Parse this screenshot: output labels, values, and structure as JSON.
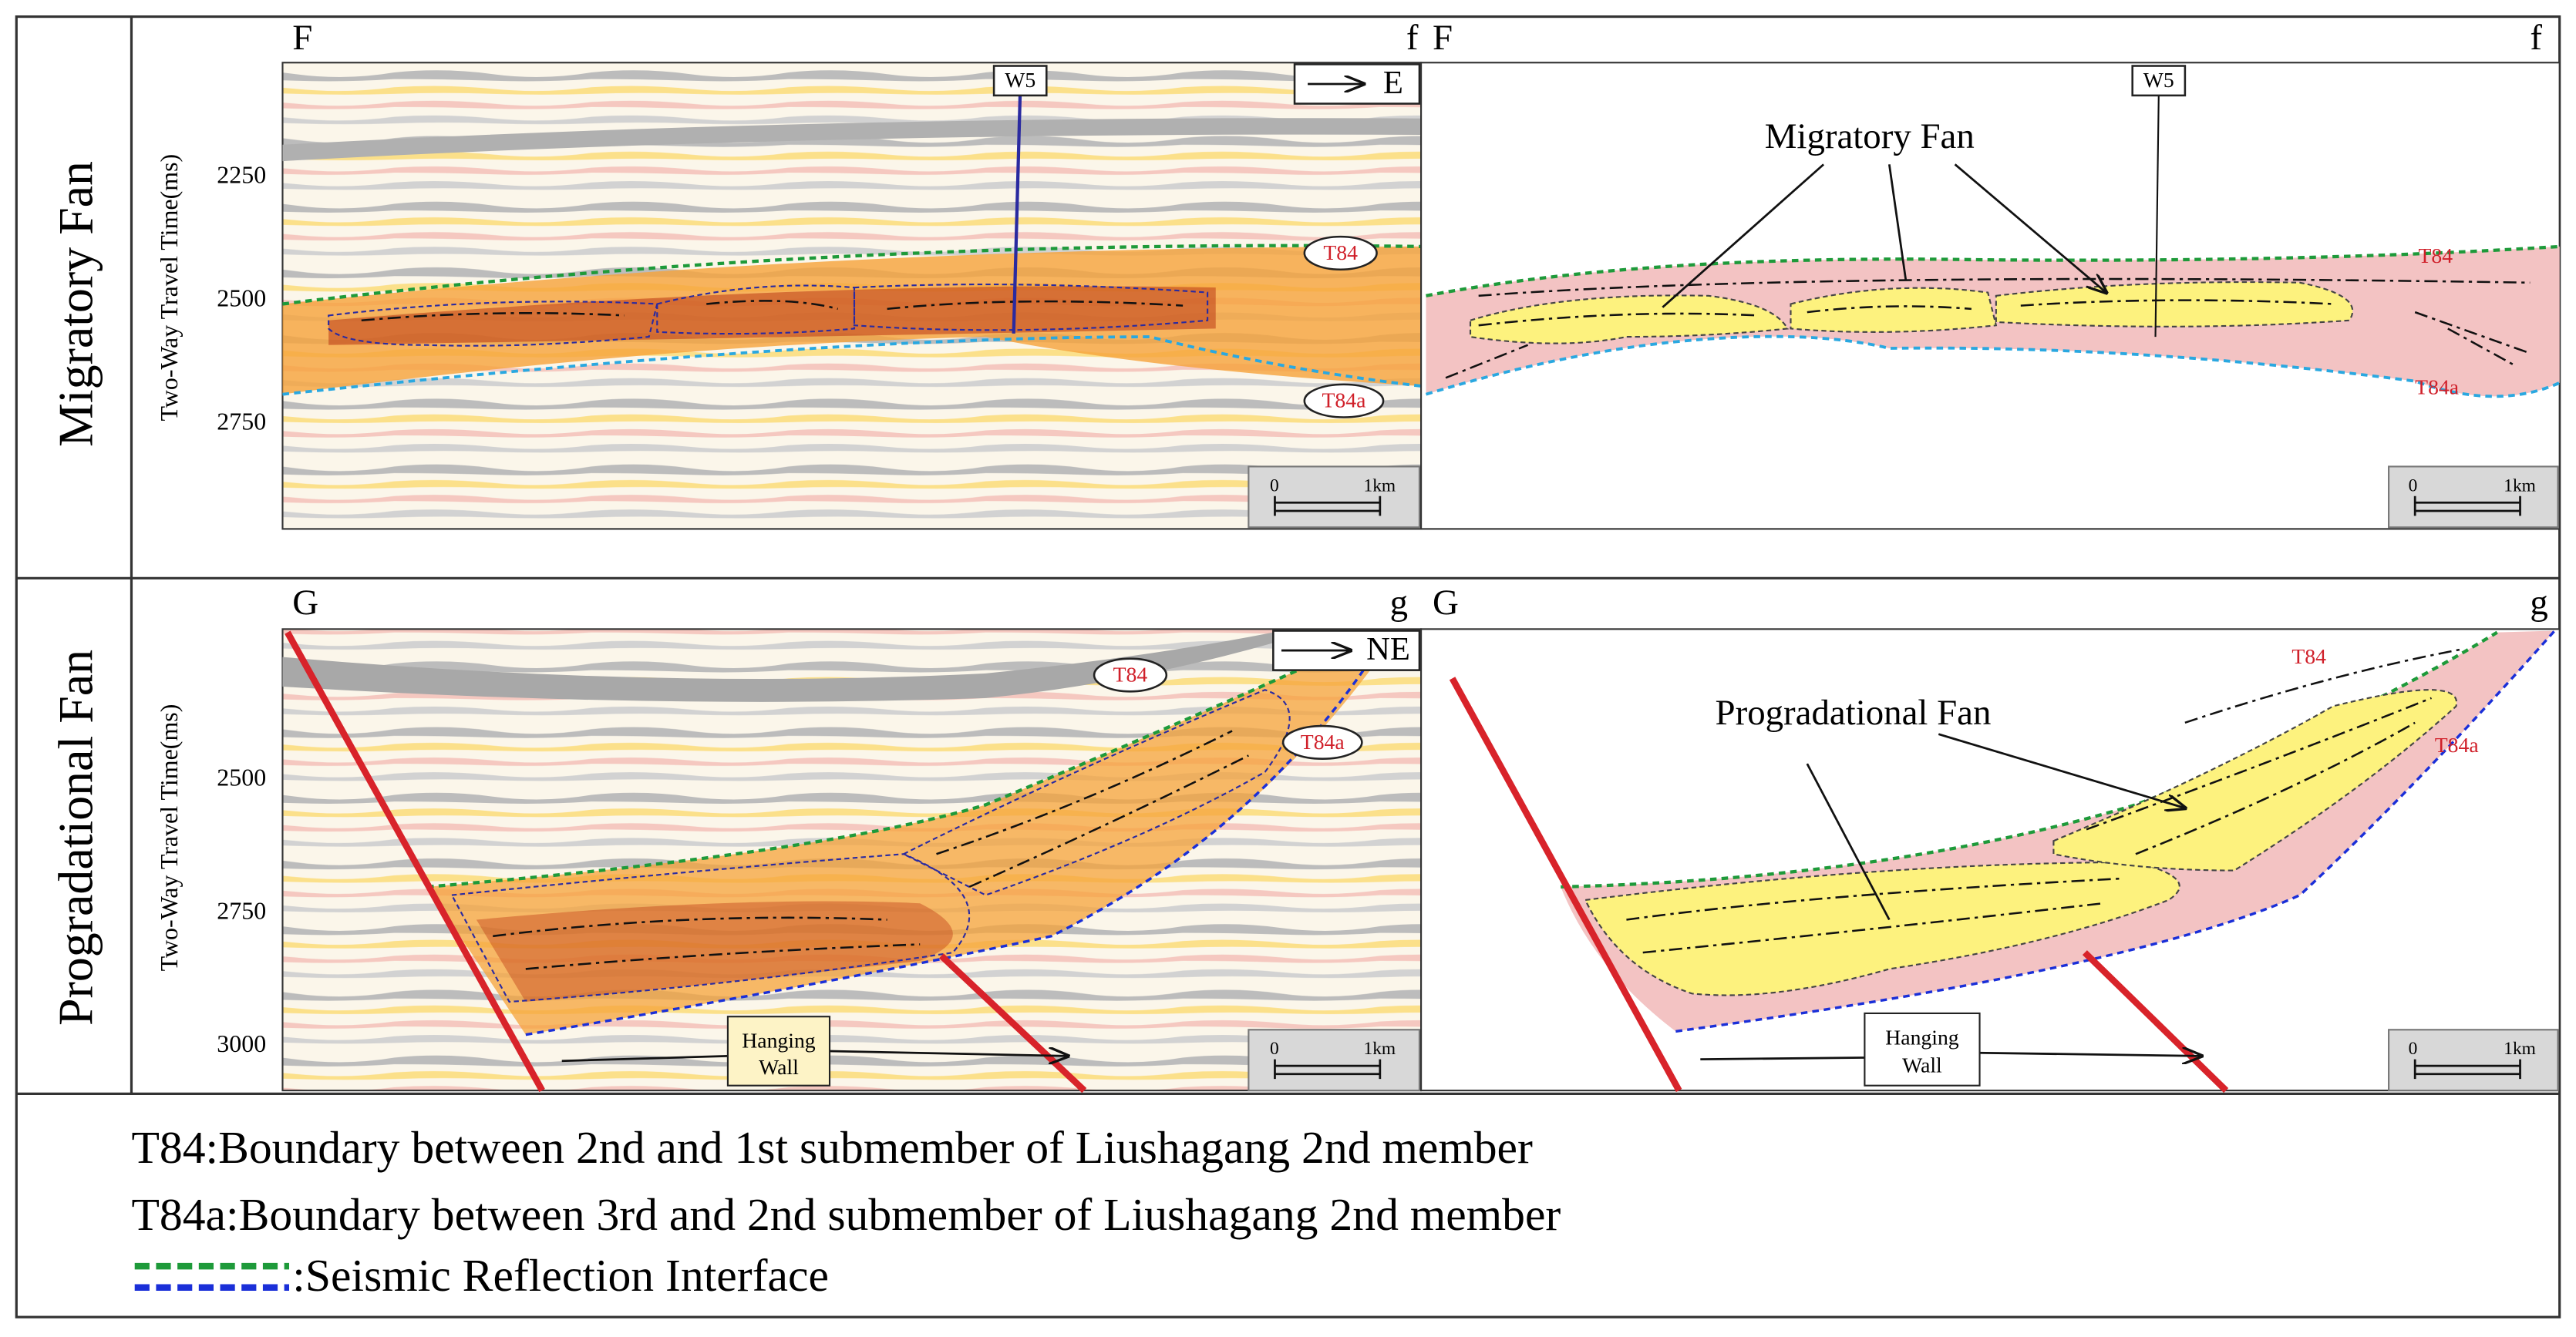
{
  "rows": [
    {
      "label": "Migratory Fan",
      "seismic": {
        "left_letter": "F",
        "right_letter": "f",
        "axis_label": "Two-Way Travel Time(ms)",
        "yticks": [
          2250,
          2500,
          2750
        ],
        "direction": "E",
        "well": "W5",
        "horizons": [
          "T84",
          "T84a"
        ],
        "scale": [
          "0",
          "1km"
        ]
      },
      "interpretation": {
        "left_letter": "F",
        "right_letter": "f",
        "well": "W5",
        "fan_label": "Migratory Fan",
        "horizons": [
          "T84",
          "T84a"
        ],
        "scale": [
          "0",
          "1km"
        ]
      }
    },
    {
      "label": "Progradational Fan",
      "seismic": {
        "left_letter": "G",
        "right_letter": "g",
        "axis_label": "Two-Way Travel Time(ms)",
        "yticks": [
          2500,
          2750,
          3000
        ],
        "direction": "NE",
        "hanging_wall": [
          "Hanging",
          "Wall"
        ],
        "horizons": [
          "T84",
          "T84a"
        ],
        "scale": [
          "0",
          "1km"
        ]
      },
      "interpretation": {
        "left_letter": "G",
        "right_letter": "g",
        "fan_label": "Progradational Fan",
        "hanging_wall": [
          "Hanging",
          "Wall"
        ],
        "horizons": [
          "T84",
          "T84a"
        ],
        "scale": [
          "0",
          "1km"
        ]
      }
    }
  ],
  "legend": [
    "T84:Boundary between 2nd and 1st submember of Liushagang 2nd member",
    "T84a:Boundary between 3rd and 2nd submember of Liushagang 2nd member",
    ":Seismic Reflection Interface"
  ]
}
